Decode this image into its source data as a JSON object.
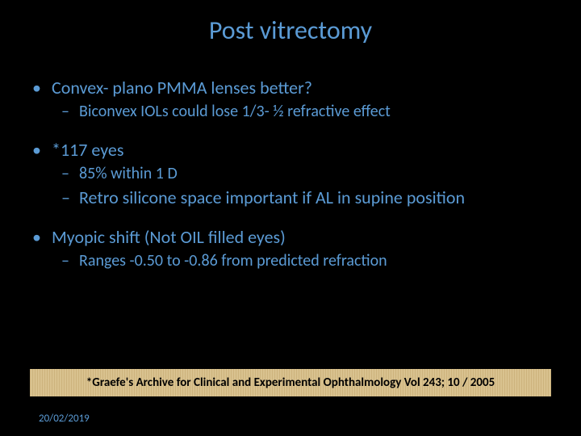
{
  "title": "Post vitrectomy",
  "sections": [
    {
      "bullet": "Convex- plano PMMA lenses better?",
      "subs": [
        {
          "text": "Biconvex IOLs could lose 1/3- ½ refractive effect",
          "large": false
        }
      ]
    },
    {
      "bullet": "*117 eyes",
      "subs": [
        {
          "text": "85% within 1 D",
          "large": false
        },
        {
          "text": "Retro silicone space important if AL in supine position",
          "large": true
        }
      ]
    },
    {
      "bullet": "Myopic shift (Not OIL filled eyes)",
      "subs": [
        {
          "text": "Ranges -0.50 to -0.86 from predicted refraction",
          "large": false
        }
      ]
    }
  ],
  "footnote": "*Graefe's Archive for Clinical and Experimental Ophthalmology Vol 243; 10 / 2005",
  "date": "20/02/2019",
  "colors": {
    "background": "#000000",
    "text": "#5b9bd5",
    "footnote_bg": "#d9c28f",
    "footnote_text": "#000000"
  }
}
